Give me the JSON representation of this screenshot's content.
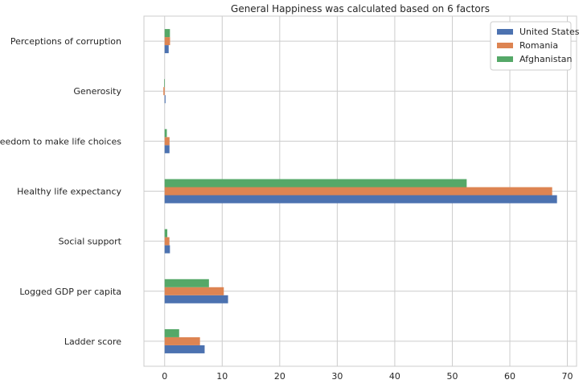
{
  "chart_data": {
    "type": "bar",
    "orientation": "horizontal",
    "title": "General Happiness was calculated based on 6 factors",
    "xlabel": "",
    "ylabel": "",
    "categories": [
      "Ladder score",
      "Logged GDP per capita",
      "Social support",
      "Healthy life expectancy",
      "Freedom to make life choices",
      "Generosity",
      "Perceptions of corruption"
    ],
    "series": [
      {
        "name": "United States",
        "color": "#4c72b0",
        "values": [
          6.95,
          11.02,
          0.92,
          68.2,
          0.84,
          0.15,
          0.7
        ]
      },
      {
        "name": "Romania",
        "color": "#dd8452",
        "values": [
          6.14,
          10.28,
          0.83,
          67.36,
          0.85,
          -0.22,
          0.94
        ]
      },
      {
        "name": "Afghanistan",
        "color": "#55a868",
        "values": [
          2.52,
          7.7,
          0.46,
          52.5,
          0.38,
          -0.1,
          0.92
        ]
      }
    ],
    "xlim": [
      -3.6,
      71.6
    ],
    "xticks": [
      0,
      10,
      20,
      30,
      40,
      50,
      60,
      70
    ],
    "grid": true,
    "legend_position": "top-right"
  }
}
